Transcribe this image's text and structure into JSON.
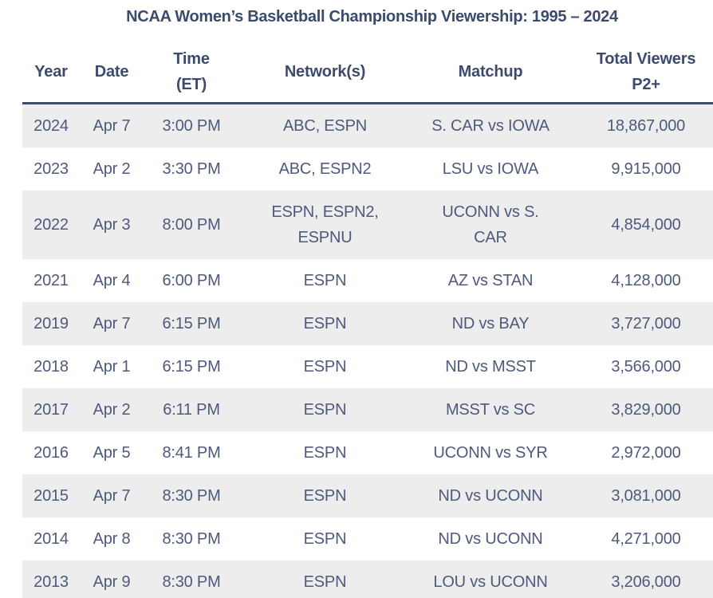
{
  "page_title": "NCAA Women’s Basketball Championship Viewership: 1995 – 2024",
  "colors": {
    "header_text": "#3c4a6b",
    "body_text": "#4e5a7c",
    "row_alt_background": "#ededee",
    "header_border": "#3c4a6b",
    "page_background": "#ffffff"
  },
  "chart_data": {
    "type": "table",
    "title": "NCAA Women’s Basketball Championship Viewership: 1995 – 2024",
    "layout": {
      "alternating_rows": true,
      "first_row_shaded": true,
      "all_columns_center_aligned": true,
      "last_row_clipped_at_bottom": true
    },
    "columns": [
      {
        "label": "Year",
        "sub": ""
      },
      {
        "label": "Date",
        "sub": ""
      },
      {
        "label": "Time",
        "sub": "(ET)"
      },
      {
        "label": "Network(s)",
        "sub": ""
      },
      {
        "label": "Matchup",
        "sub": ""
      },
      {
        "label": "Total Viewers",
        "sub": "P2+"
      }
    ],
    "rows": [
      {
        "year": "2024",
        "date": "Apr 7",
        "time": "3:00 PM",
        "networks": "ABC, ESPN",
        "matchup": "S. CAR vs IOWA",
        "viewers": "18,867,000",
        "viewers_value": 18867000
      },
      {
        "year": "2023",
        "date": "Apr 2",
        "time": "3:30 PM",
        "networks": "ABC, ESPN2",
        "matchup": "LSU vs IOWA",
        "viewers": "9,915,000",
        "viewers_value": 9915000
      },
      {
        "year": "2022",
        "date": "Apr 3",
        "time": "8:00 PM",
        "networks": "ESPN, ESPN2,\nESPNU",
        "matchup": "UCONN vs S.\nCAR",
        "viewers": "4,854,000",
        "viewers_value": 4854000
      },
      {
        "year": "2021",
        "date": "Apr 4",
        "time": "6:00 PM",
        "networks": "ESPN",
        "matchup": "AZ vs STAN",
        "viewers": "4,128,000",
        "viewers_value": 4128000
      },
      {
        "year": "2019",
        "date": "Apr 7",
        "time": "6:15 PM",
        "networks": "ESPN",
        "matchup": "ND vs BAY",
        "viewers": "3,727,000",
        "viewers_value": 3727000
      },
      {
        "year": "2018",
        "date": "Apr 1",
        "time": "6:15 PM",
        "networks": "ESPN",
        "matchup": "ND vs MSST",
        "viewers": "3,566,000",
        "viewers_value": 3566000
      },
      {
        "year": "2017",
        "date": "Apr 2",
        "time": "6:11 PM",
        "networks": "ESPN",
        "matchup": "MSST vs SC",
        "viewers": "3,829,000",
        "viewers_value": 3829000
      },
      {
        "year": "2016",
        "date": "Apr 5",
        "time": "8:41 PM",
        "networks": "ESPN",
        "matchup": "UCONN vs SYR",
        "viewers": "2,972,000",
        "viewers_value": 2972000
      },
      {
        "year": "2015",
        "date": "Apr 7",
        "time": "8:30 PM",
        "networks": "ESPN",
        "matchup": "ND vs UCONN",
        "viewers": "3,081,000",
        "viewers_value": 3081000
      },
      {
        "year": "2014",
        "date": "Apr 8",
        "time": "8:30 PM",
        "networks": "ESPN",
        "matchup": "ND vs UCONN",
        "viewers": "4,271,000",
        "viewers_value": 4271000
      },
      {
        "year": "2013",
        "date": "Apr 9",
        "time": "8:30 PM",
        "networks": "ESPN",
        "matchup": "LOU vs UCONN",
        "viewers": "3,206,000",
        "viewers_value": 3206000
      }
    ]
  }
}
